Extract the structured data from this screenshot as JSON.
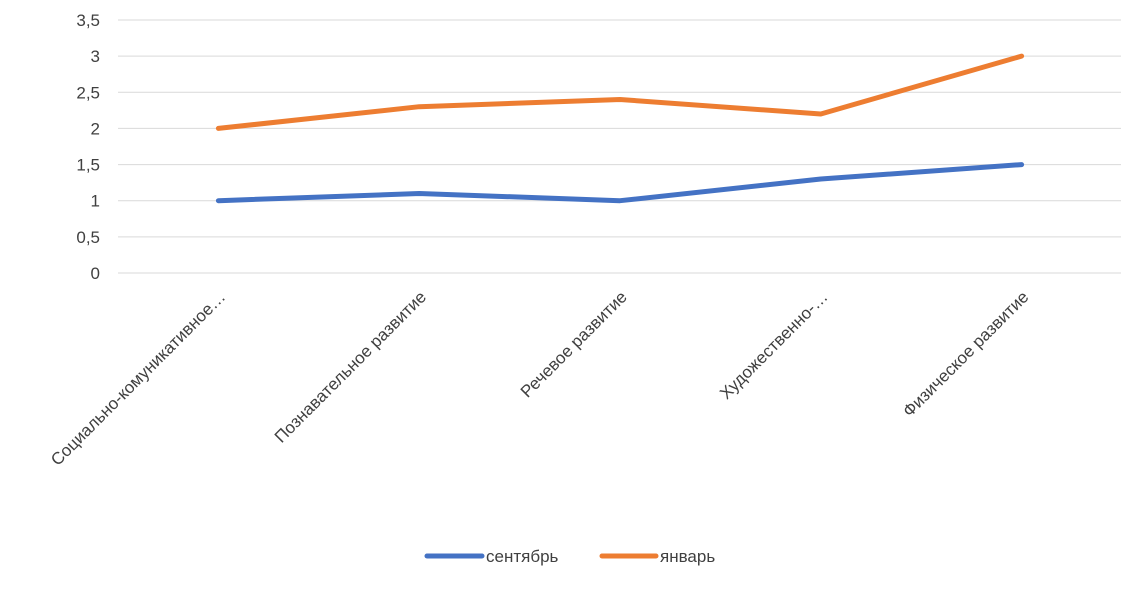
{
  "chart_data": {
    "type": "line",
    "categories": [
      "Социально-комуникативное…",
      "Познавательное развитие",
      "Речевое развитие",
      "Художественно-…",
      "Физическое развитие"
    ],
    "series": [
      {
        "name": "сентябрь",
        "values": [
          1,
          1.1,
          1,
          1.3,
          1.5
        ],
        "color": "#4472c4"
      },
      {
        "name": "январь",
        "values": [
          2,
          2.3,
          2.4,
          2.2,
          3
        ],
        "color": "#ed7d31"
      }
    ],
    "y_ticks": [
      "0",
      "0,5",
      "1",
      "1,5",
      "2",
      "2,5",
      "3",
      "3,5"
    ],
    "ylim": [
      0,
      3.5
    ],
    "grid": true,
    "legend": "bottom"
  }
}
